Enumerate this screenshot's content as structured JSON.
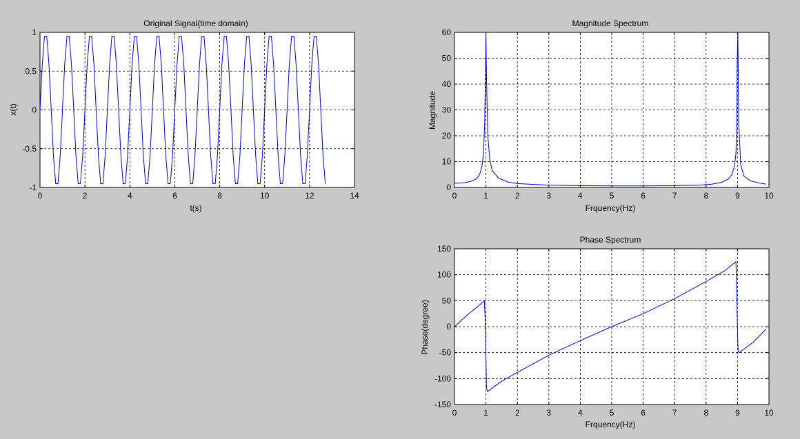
{
  "colors": {
    "background": "#c8c8c8",
    "axes": "#ffffff",
    "series": "#0000c8"
  },
  "chart_data": [
    {
      "id": "time",
      "type": "line",
      "title": "Original Signal(time domain)",
      "xlabel": "t(s)",
      "ylabel": "x(t)",
      "xlim": [
        0,
        14
      ],
      "ylim": [
        -1,
        1
      ],
      "xticks": [
        0,
        2,
        4,
        6,
        8,
        10,
        12,
        14
      ],
      "yticks": [
        -1,
        -0.5,
        0,
        0.5,
        1
      ],
      "xticklabels": [
        "0",
        "2",
        "4",
        "6",
        "8",
        "10",
        "12",
        "14"
      ],
      "yticklabels": [
        "-1",
        "-0.5",
        "0",
        "0.5",
        "1"
      ],
      "grid": true,
      "series": [
        {
          "x": [
            0,
            0.1,
            0.2,
            0.3,
            0.4,
            0.5,
            0.6,
            0.7,
            0.8,
            0.9,
            1.0,
            1.1,
            1.2,
            1.3,
            1.4,
            1.5,
            1.6,
            1.7,
            1.8,
            1.9,
            2.0,
            2.1,
            2.2,
            2.3,
            2.4,
            2.5,
            2.6,
            2.7,
            2.8,
            2.9,
            3.0,
            3.1,
            3.2,
            3.3,
            3.4,
            3.5,
            3.6,
            3.7,
            3.8,
            3.9,
            4.0,
            4.1,
            4.2,
            4.3,
            4.4,
            4.5,
            4.6,
            4.7,
            4.8,
            4.9,
            5.0,
            5.1,
            5.2,
            5.3,
            5.4,
            5.5,
            5.6,
            5.7,
            5.8,
            5.9,
            6.0,
            6.1,
            6.2,
            6.3,
            6.4,
            6.5,
            6.6,
            6.7,
            6.8,
            6.9,
            7.0,
            7.1,
            7.2,
            7.3,
            7.4,
            7.5,
            7.6,
            7.7,
            7.8,
            7.9,
            8.0,
            8.1,
            8.2,
            8.3,
            8.4,
            8.5,
            8.6,
            8.7,
            8.8,
            8.9,
            9.0,
            9.1,
            9.2,
            9.3,
            9.4,
            9.5,
            9.6,
            9.7,
            9.8,
            9.9,
            10.0,
            10.1,
            10.2,
            10.3,
            10.4,
            10.5,
            10.6,
            10.7,
            10.8,
            10.9,
            11.0,
            11.1,
            11.2,
            11.3,
            11.4,
            11.5,
            11.6,
            11.7,
            11.8,
            11.9,
            12.0,
            12.1,
            12.2,
            12.3,
            12.4,
            12.5,
            12.6,
            12.7
          ],
          "y": [
            0.0,
            0.588,
            0.951,
            0.951,
            0.588,
            0.0,
            -0.588,
            -0.951,
            -0.951,
            -0.588,
            0.0,
            0.588,
            0.951,
            0.951,
            0.588,
            0.0,
            -0.588,
            -0.951,
            -0.951,
            -0.588,
            0.0,
            0.588,
            0.951,
            0.951,
            0.588,
            0.0,
            -0.588,
            -0.951,
            -0.951,
            -0.588,
            0.0,
            0.588,
            0.951,
            0.951,
            0.588,
            0.0,
            -0.588,
            -0.951,
            -0.951,
            -0.588,
            0.0,
            0.588,
            0.951,
            0.951,
            0.588,
            0.0,
            -0.588,
            -0.951,
            -0.951,
            -0.588,
            0.0,
            0.588,
            0.951,
            0.951,
            0.588,
            0.0,
            -0.588,
            -0.951,
            -0.951,
            -0.588,
            0.0,
            0.588,
            0.951,
            0.951,
            0.588,
            0.0,
            -0.588,
            -0.951,
            -0.951,
            -0.588,
            0.0,
            0.588,
            0.951,
            0.951,
            0.588,
            0.0,
            -0.588,
            -0.951,
            -0.951,
            -0.588,
            0.0,
            0.588,
            0.951,
            0.951,
            0.588,
            0.0,
            -0.588,
            -0.951,
            -0.951,
            -0.588,
            0.0,
            0.588,
            0.951,
            0.951,
            0.588,
            0.0,
            -0.588,
            -0.951,
            -0.951,
            -0.588,
            0.0,
            0.588,
            0.951,
            0.951,
            0.588,
            0.0,
            -0.588,
            -0.951,
            -0.951,
            -0.588,
            0.0,
            0.588,
            0.951,
            0.951,
            0.588,
            0.0,
            -0.588,
            -0.951,
            -0.951,
            -0.588,
            0.0,
            0.588,
            0.951,
            0.951,
            0.588,
            0.0,
            -0.588,
            -0.951
          ]
        }
      ]
    },
    {
      "id": "magnitude",
      "type": "line",
      "title": "Magnitude Spectrum",
      "xlabel": "Frquency(Hz)",
      "ylabel": "Magnitude",
      "xlim": [
        0,
        10
      ],
      "ylim": [
        0,
        60
      ],
      "xticks": [
        0,
        1,
        2,
        3,
        4,
        5,
        6,
        7,
        8,
        9,
        10
      ],
      "yticks": [
        0,
        10,
        20,
        30,
        40,
        50,
        60
      ],
      "xticklabels": [
        "0",
        "1",
        "2",
        "3",
        "4",
        "5",
        "6",
        "7",
        "8",
        "9",
        "10"
      ],
      "yticklabels": [
        "0",
        "10",
        "20",
        "30",
        "40",
        "50",
        "60"
      ],
      "grid": true,
      "series": [
        {
          "x": [
            0,
            0.3,
            0.5,
            0.7,
            0.8,
            0.87,
            0.92,
            0.96,
            0.99,
            1.0,
            1.02,
            1.06,
            1.12,
            1.2,
            1.4,
            1.7,
            2.0,
            3.0,
            4.0,
            5.0,
            6.0,
            7.0,
            7.8,
            8.2,
            8.5,
            8.7,
            8.82,
            8.9,
            8.95,
            8.98,
            8.99,
            9.01,
            9.04,
            9.1,
            9.2,
            9.4,
            9.7,
            9.9
          ],
          "y": [
            1.6,
            1.8,
            2.3,
            3.3,
            5.0,
            8.0,
            13.0,
            25.0,
            48.0,
            60.0,
            42.0,
            20.0,
            11.0,
            6.5,
            3.6,
            2.1,
            1.5,
            0.9,
            0.7,
            0.6,
            0.6,
            0.7,
            0.9,
            1.3,
            2.0,
            3.2,
            5.0,
            8.0,
            13.0,
            25.0,
            48.0,
            60.0,
            25.0,
            9.0,
            4.5,
            2.6,
            1.7,
            1.3
          ]
        }
      ]
    },
    {
      "id": "phase",
      "type": "line",
      "title": "Phase Spectrum",
      "xlabel": "Frquency(Hz)",
      "ylabel": "Phase(degree)",
      "xlim": [
        0,
        10
      ],
      "ylim": [
        -150,
        150
      ],
      "xticks": [
        0,
        1,
        2,
        3,
        4,
        5,
        6,
        7,
        8,
        9,
        10
      ],
      "yticks": [
        -150,
        -100,
        -50,
        0,
        50,
        100,
        150
      ],
      "xticklabels": [
        "0",
        "1",
        "2",
        "3",
        "4",
        "5",
        "6",
        "7",
        "8",
        "9",
        "10"
      ],
      "yticklabels": [
        "-150",
        "-100",
        "-50",
        "0",
        "50",
        "100",
        "150"
      ],
      "grid": true,
      "series": [
        {
          "x": [
            0,
            0.4,
            0.8,
            0.95,
            0.98,
            1.0,
            1.02,
            1.05,
            1.5,
            2.0,
            3.0,
            4.0,
            5.0,
            6.0,
            7.0,
            8.0,
            8.6,
            8.95,
            8.98,
            9.0,
            9.02,
            9.05,
            9.5,
            9.9
          ],
          "y": [
            0,
            22,
            42,
            50,
            10,
            -60,
            -118,
            -125,
            -105,
            -88,
            -55,
            -27,
            0,
            25,
            54,
            87,
            108,
            125,
            60,
            -10,
            -48,
            -50,
            -30,
            -5
          ]
        }
      ]
    }
  ]
}
